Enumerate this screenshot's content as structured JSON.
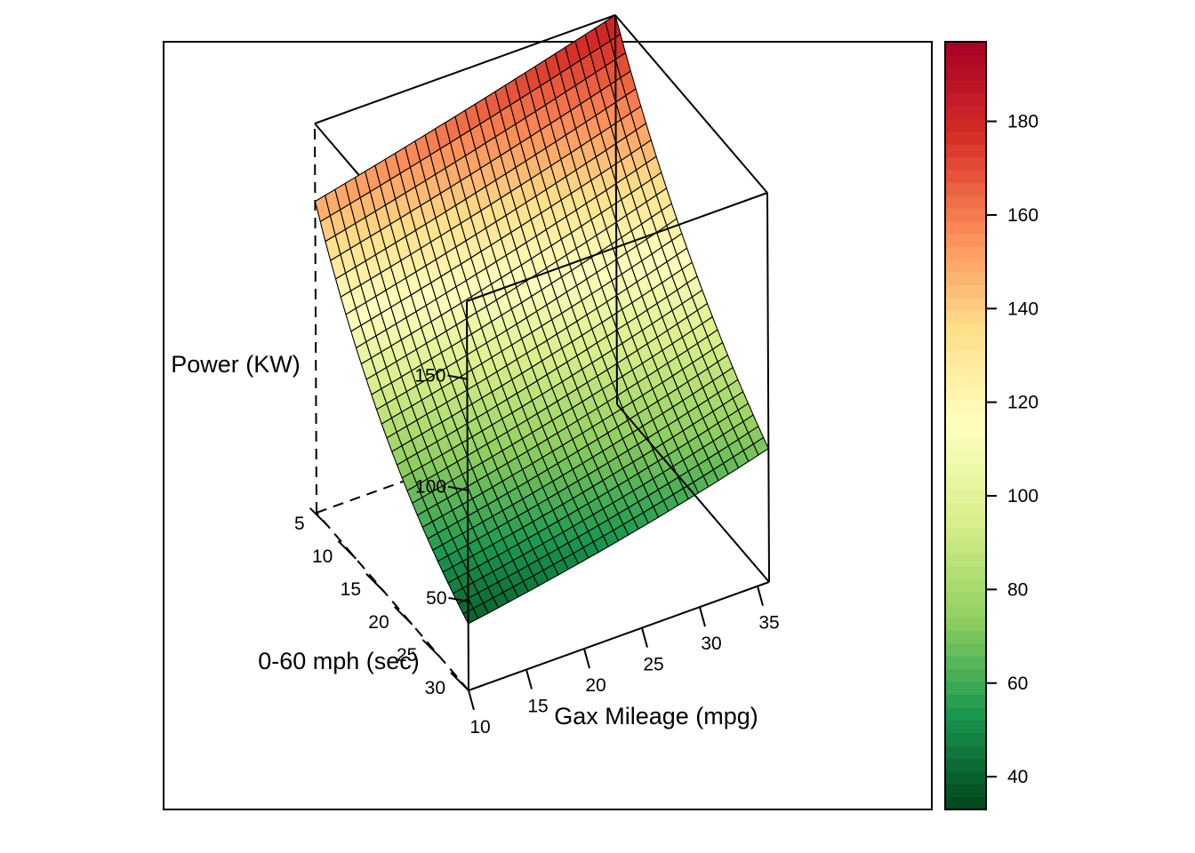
{
  "chart_data": {
    "type": "surface3d",
    "title": "",
    "axes": {
      "x": {
        "label": "Gax Mileage (mpg)",
        "range": [
          10,
          36
        ],
        "ticks": [
          10,
          15,
          20,
          25,
          30,
          35
        ]
      },
      "y": {
        "label": "0-60 mph (sec)",
        "range": [
          3,
          30
        ],
        "ticks": [
          5,
          10,
          15,
          20,
          25,
          30
        ]
      },
      "z": {
        "label": "Power (KW)",
        "range": [
          10,
          185
        ],
        "ticks": [
          50,
          100,
          150
        ]
      }
    },
    "corner_values": [
      {
        "mpg": 10,
        "accel_sec": 3,
        "power_kw": 150
      },
      {
        "mpg": 10,
        "accel_sec": 30,
        "power_kw": 40
      },
      {
        "mpg": 36,
        "accel_sec": 3,
        "power_kw": 185
      },
      {
        "mpg": 36,
        "accel_sec": 30,
        "power_kw": 70
      }
    ],
    "grid_resolution": 30,
    "colorbar": {
      "range": [
        33,
        197
      ],
      "ticks": [
        40,
        60,
        80,
        100,
        120,
        140,
        160,
        180
      ],
      "palette": [
        "#00441b",
        "#1a9850",
        "#91cf60",
        "#d9ef8b",
        "#ffffbf",
        "#fee08b",
        "#fc8d59",
        "#d73027",
        "#a50026"
      ]
    },
    "grid": false,
    "legend": "right"
  }
}
